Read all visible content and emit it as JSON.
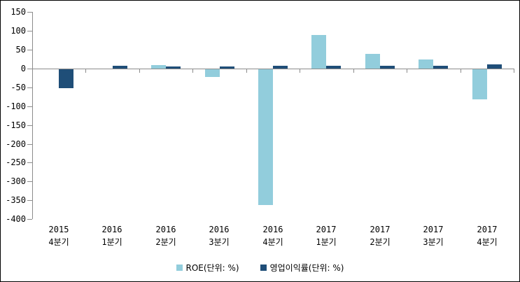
{
  "chart_data": {
    "type": "bar",
    "title": "",
    "xlabel": "",
    "ylabel": "",
    "grid": false,
    "legend_position": "bottom",
    "axis_color": "#8C8C8C",
    "categories": [
      {
        "line1": "2015",
        "line2": "4분기"
      },
      {
        "line1": "2016",
        "line2": "1분기"
      },
      {
        "line1": "2016",
        "line2": "2분기"
      },
      {
        "line1": "2016",
        "line2": "3분기"
      },
      {
        "line1": "2016",
        "line2": "4분기"
      },
      {
        "line1": "2017",
        "line2": "1분기"
      },
      {
        "line1": "2017",
        "line2": "2분기"
      },
      {
        "line1": "2017",
        "line2": "3분기"
      },
      {
        "line1": "2017",
        "line2": "4분기"
      }
    ],
    "series": [
      {
        "name": "ROE(단위: %)",
        "color": "#92CDDC",
        "values": [
          0,
          0,
          10,
          -20,
          -360,
          90,
          40,
          25,
          -80
        ]
      },
      {
        "name": "영업이익률(단위: %)",
        "color": "#1F4E78",
        "values": [
          -50,
          7,
          5,
          5,
          7,
          8,
          8,
          8,
          11
        ]
      }
    ],
    "y_axis": {
      "min": -400,
      "max": 150,
      "step": 50,
      "tick_labels": [
        "150",
        "100",
        "50",
        "0",
        "-50",
        "-100",
        "-150",
        "-200",
        "-250",
        "-300",
        "-350",
        "-400"
      ]
    }
  }
}
